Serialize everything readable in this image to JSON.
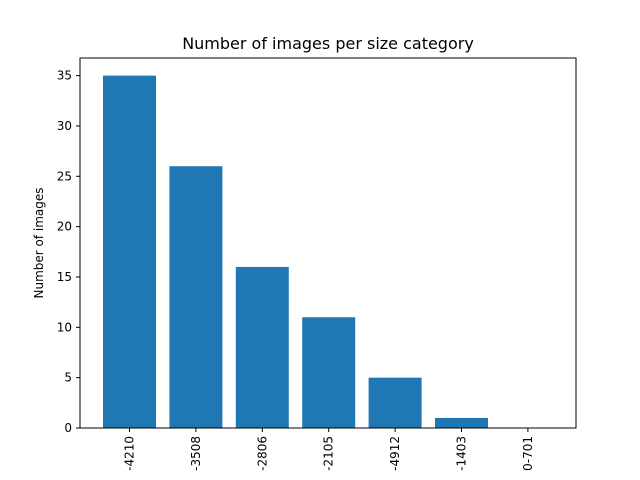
{
  "chart_data": {
    "type": "bar",
    "title": "Number of images per size category",
    "xlabel": "",
    "ylabel": "Number of images",
    "categories": [
      "-4210",
      "-3508",
      "-2806",
      "-2105",
      "-4912",
      "-1403",
      "0-701"
    ],
    "values": [
      35,
      26,
      16,
      11,
      5,
      1,
      0
    ],
    "ylim": [
      0,
      36.75
    ],
    "yticks": [
      0,
      5,
      10,
      15,
      20,
      25,
      30,
      35
    ],
    "bar_color": "#1f77b4",
    "grid": false,
    "legend": "none"
  }
}
